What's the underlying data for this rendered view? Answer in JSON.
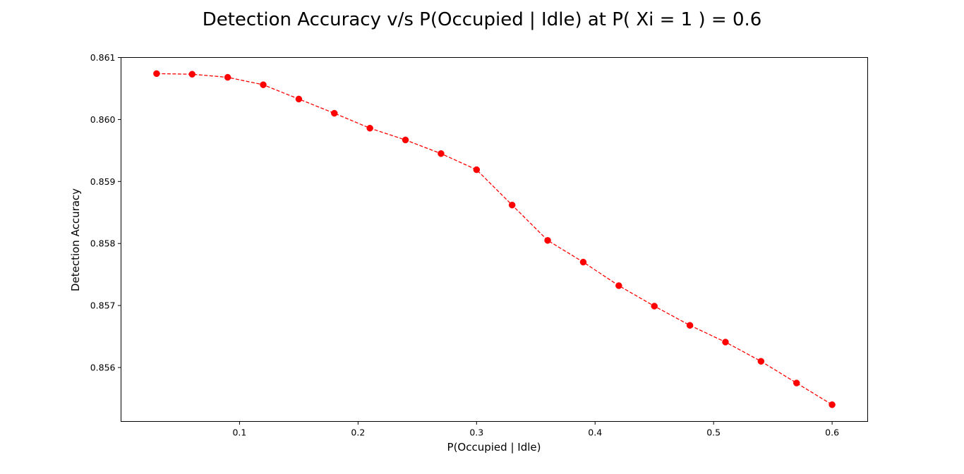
{
  "chart_data": {
    "type": "line",
    "title": "Detection Accuracy v/s P(Occupied | Idle) at P( Xi = 1 ) = 0.6",
    "xlabel": "P(Occupied | Idle)",
    "ylabel": "Detection Accuracy",
    "xlim": [
      0.0,
      0.63
    ],
    "ylim": [
      0.85513,
      0.861
    ],
    "xticks": [
      0.1,
      0.2,
      0.3,
      0.4,
      0.5,
      0.6
    ],
    "xtick_labels": [
      "0.1",
      "0.2",
      "0.3",
      "0.4",
      "0.5",
      "0.6"
    ],
    "yticks": [
      0.856,
      0.857,
      0.858,
      0.859,
      0.86,
      0.861
    ],
    "ytick_labels": [
      "0.856",
      "0.857",
      "0.858",
      "0.859",
      "0.860",
      "0.861"
    ],
    "grid": false,
    "series": [
      {
        "color": "#ff0000",
        "line_style": "dashed",
        "marker": "circle",
        "x": [
          0.03,
          0.06,
          0.09,
          0.12,
          0.15,
          0.18,
          0.21,
          0.24,
          0.27,
          0.3,
          0.33,
          0.36,
          0.39,
          0.42,
          0.45,
          0.48,
          0.51,
          0.54,
          0.57,
          0.6
        ],
        "y": [
          0.86074,
          0.86073,
          0.86068,
          0.86056,
          0.86033,
          0.8601,
          0.85986,
          0.85967,
          0.85945,
          0.85919,
          0.85862,
          0.85805,
          0.8577,
          0.85732,
          0.85699,
          0.85668,
          0.85641,
          0.8561,
          0.85575,
          0.8554
        ]
      }
    ]
  }
}
